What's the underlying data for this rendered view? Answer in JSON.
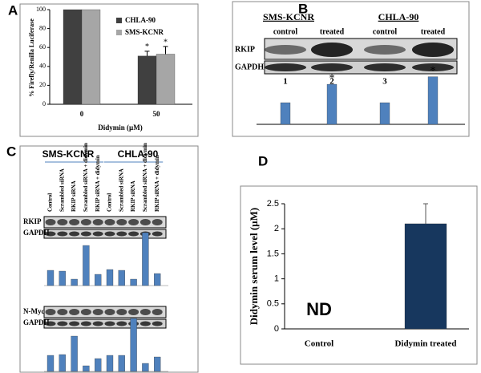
{
  "panel_a": {
    "label": "A",
    "chart_data": {
      "type": "bar",
      "ylabel": "% Firefly/Renilla Luciferase",
      "xlabel": "Didymin (µM)",
      "categories": [
        "0",
        "50"
      ],
      "series": [
        {
          "name": "CHLA-90",
          "color": "#404040",
          "values": [
            100,
            51
          ],
          "errors": [
            null,
            5
          ]
        },
        {
          "name": "SMS-KCNR",
          "color": "#a6a6a6",
          "values": [
            100,
            53
          ],
          "errors": [
            null,
            8
          ]
        }
      ],
      "ylim": [
        0,
        100
      ],
      "yticks": [
        0,
        20,
        40,
        60,
        80,
        100
      ],
      "annotations": [
        "*",
        "*"
      ]
    }
  },
  "panel_b": {
    "label": "B",
    "groups": [
      "SMS-KCNR",
      "CHLA-90"
    ],
    "lanes": [
      "control",
      "treated",
      "control",
      "treated"
    ],
    "lane_numbers": [
      "1",
      "2",
      "3",
      "4"
    ],
    "blots": [
      "RKIP",
      "GAPDH"
    ],
    "chart_data": {
      "type": "bar",
      "values": [
        1,
        1.85,
        1,
        2.2
      ],
      "color": "#4f81bd",
      "annotations": [
        "*",
        "*"
      ]
    }
  },
  "panel_c": {
    "label": "C",
    "groups": [
      "SMS-KCNR",
      "CHLA-90"
    ],
    "lanes": [
      "Control",
      "Scrambled siRNA",
      "RKIP siRNA",
      "Scrambled siRNA + didymin",
      "RKIP siRNA + didymin",
      "Control",
      "Scrambled siRNA",
      "RKIP siRNA",
      "Scrambled siRNA + didymin",
      "RKIP siRNA + didymin"
    ],
    "blots": [
      {
        "protein": "RKIP",
        "loading": "GAPDH"
      },
      {
        "protein": "N-Myc",
        "loading": "GAPDH"
      }
    ],
    "chart_data": [
      {
        "type": "bar",
        "color": "#4f81bd",
        "values": [
          19,
          18,
          8,
          50,
          14,
          20,
          19,
          8,
          66,
          15
        ]
      },
      {
        "type": "bar",
        "color": "#4f81bd",
        "values": [
          20,
          21,
          44,
          7,
          16,
          20,
          20,
          66,
          10,
          18
        ]
      }
    ]
  },
  "panel_d": {
    "label": "D",
    "chart_data": {
      "type": "bar",
      "ylabel": "Didymin serum level (µM)",
      "categories": [
        "Control",
        "Didymin treated"
      ],
      "values": [
        null,
        2.1
      ],
      "errors": [
        null,
        0.4
      ],
      "color": "#17375e",
      "ylim": [
        0,
        2.5
      ],
      "yticks": [
        0,
        0.5,
        1,
        1.5,
        2,
        2.5
      ],
      "annotation": "ND"
    }
  }
}
